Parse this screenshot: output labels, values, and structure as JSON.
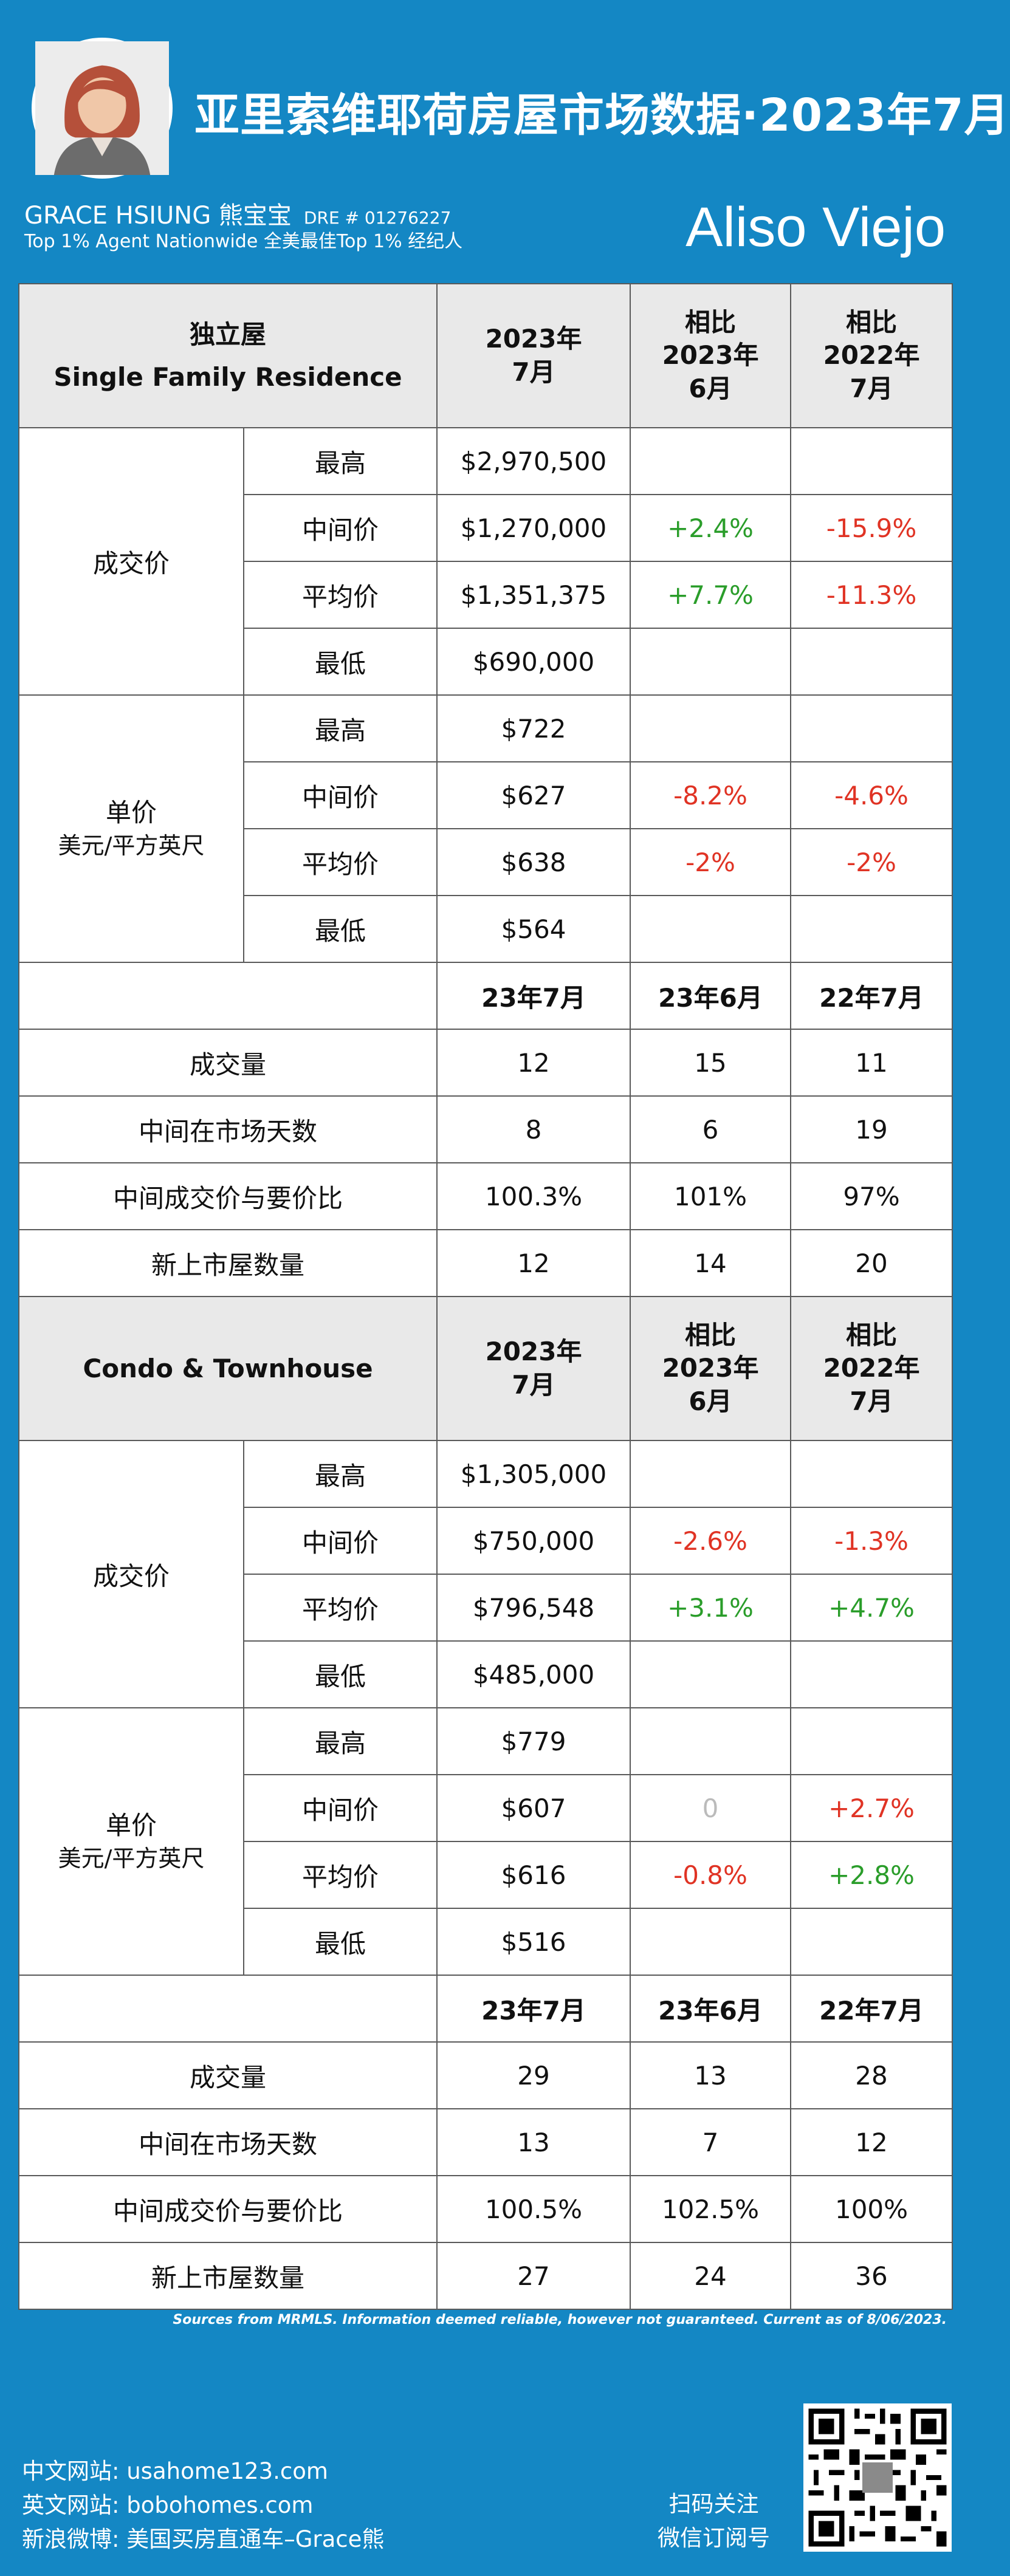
{
  "header": {
    "title": "亚里索维耶荷房屋市场数据·2023年7月",
    "agent_name": "GRACE HSIUNG 熊宝宝",
    "dre": "DRE # 01276227",
    "agent_tagline": "Top 1% Agent Nationwide  全美最佳Top 1% 经纪人",
    "city": "Aliso Viejo"
  },
  "sfr": {
    "header": {
      "type_cn": "独立屋",
      "type_en": "Single Family Residence",
      "col1": [
        "2023年",
        "7月"
      ],
      "col2": [
        "相比",
        "2023年",
        "6月"
      ],
      "col3": [
        "相比",
        "2022年",
        "7月"
      ]
    },
    "price_group": "成交价",
    "price_rows": [
      {
        "label": "最高",
        "value": "$2,970,500",
        "mom": "",
        "yoy": ""
      },
      {
        "label": "中间价",
        "value": "$1,270,000",
        "mom": "+2.4%",
        "yoy": "-15.9%"
      },
      {
        "label": "平均价",
        "value": "$1,351,375",
        "mom": "+7.7%",
        "yoy": "-11.3%"
      },
      {
        "label": "最低",
        "value": "$690,000",
        "mom": "",
        "yoy": ""
      }
    ],
    "unit_group": [
      "单价",
      "美元/平方英尺"
    ],
    "unit_rows": [
      {
        "label": "最高",
        "value": "$722",
        "mom": "",
        "yoy": ""
      },
      {
        "label": "中间价",
        "value": "$627",
        "mom": "-8.2%",
        "yoy": "-4.6%"
      },
      {
        "label": "平均价",
        "value": "$638",
        "mom": "-2%",
        "yoy": "-2%"
      },
      {
        "label": "最低",
        "value": "$564",
        "mom": "",
        "yoy": ""
      }
    ],
    "period_headers": [
      "23年7月",
      "23年6月",
      "22年7月"
    ],
    "stats": [
      {
        "label": "成交量",
        "v1": "12",
        "v2": "15",
        "v3": "11"
      },
      {
        "label": "中间在市场天数",
        "v1": "8",
        "v2": "6",
        "v3": "19"
      },
      {
        "label": "中间成交价与要价比",
        "v1": "100.3%",
        "v2": "101%",
        "v3": "97%"
      },
      {
        "label": "新上市屋数量",
        "v1": "12",
        "v2": "14",
        "v3": "20"
      }
    ]
  },
  "condo": {
    "header": {
      "type": "Condo & Townhouse",
      "col1": [
        "2023年",
        "7月"
      ],
      "col2": [
        "相比",
        "2023年",
        "6月"
      ],
      "col3": [
        "相比",
        "2022年",
        "7月"
      ]
    },
    "price_group": "成交价",
    "price_rows": [
      {
        "label": "最高",
        "value": "$1,305,000",
        "mom": "",
        "yoy": ""
      },
      {
        "label": "中间价",
        "value": "$750,000",
        "mom": "-2.6%",
        "yoy": "-1.3%"
      },
      {
        "label": "平均价",
        "value": "$796,548",
        "mom": "+3.1%",
        "yoy": "+4.7%"
      },
      {
        "label": "最低",
        "value": "$485,000",
        "mom": "",
        "yoy": ""
      }
    ],
    "unit_group": [
      "单价",
      "美元/平方英尺"
    ],
    "unit_rows": [
      {
        "label": "最高",
        "value": "$779",
        "mom": "",
        "yoy": ""
      },
      {
        "label": "中间价",
        "value": "$607",
        "mom": "0",
        "yoy": "+2.7%"
      },
      {
        "label": "平均价",
        "value": "$616",
        "mom": "-0.8%",
        "yoy": "+2.8%"
      },
      {
        "label": "最低",
        "value": "$516",
        "mom": "",
        "yoy": ""
      }
    ],
    "period_headers": [
      "23年7月",
      "23年6月",
      "22年7月"
    ],
    "stats": [
      {
        "label": "成交量",
        "v1": "29",
        "v2": "13",
        "v3": "28"
      },
      {
        "label": "中间在市场天数",
        "v1": "13",
        "v2": "7",
        "v3": "12"
      },
      {
        "label": "中间成交价与要价比",
        "v1": "100.5%",
        "v2": "102.5%",
        "v3": "100%"
      },
      {
        "label": "新上市屋数量",
        "v1": "27",
        "v2": "24",
        "v3": "36"
      }
    ]
  },
  "colors": {
    "background": "#1487c4",
    "positive": "#2a9d2a",
    "negative": "#e03324",
    "neutral": "#bbbbbb"
  },
  "footer": {
    "source": "Sources from MRMLS. Information deemed reliable, however not guaranteed. Current as of 8/06/2023.",
    "links": [
      "中文网站:  usahome123.com",
      "英文网站:  bobohomes.com",
      "新浪微博:  美国买房直通车–Grace熊"
    ],
    "scan": [
      "扫码关注",
      "微信订阅号"
    ],
    "qr_icon": "qr-code-icon"
  }
}
